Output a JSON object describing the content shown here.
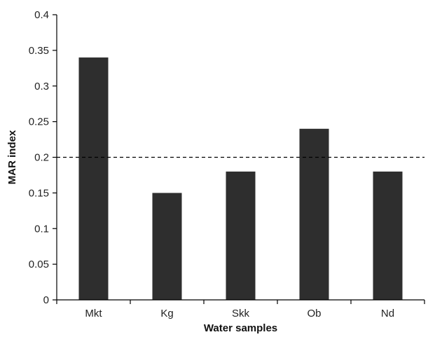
{
  "chart_data": {
    "type": "bar",
    "title": "",
    "xlabel": "Water samples",
    "ylabel": "MAR index",
    "categories": [
      "Mkt",
      "Kg",
      "Skk",
      "Ob",
      "Nd"
    ],
    "values": [
      0.34,
      0.15,
      0.18,
      0.24,
      0.18
    ],
    "ylim": [
      0,
      0.4
    ],
    "yticks": [
      "0",
      "0.05",
      "0.1",
      "0.15",
      "0.2",
      "0.25",
      "0.3",
      "0.35",
      "0.4"
    ],
    "grid": false,
    "legend": "none",
    "reference_line": {
      "value": 0.2,
      "style": "dashed"
    },
    "colors": {
      "bar": "#2e2e2e",
      "axis": "#000000",
      "reference_line": "#000000"
    }
  }
}
